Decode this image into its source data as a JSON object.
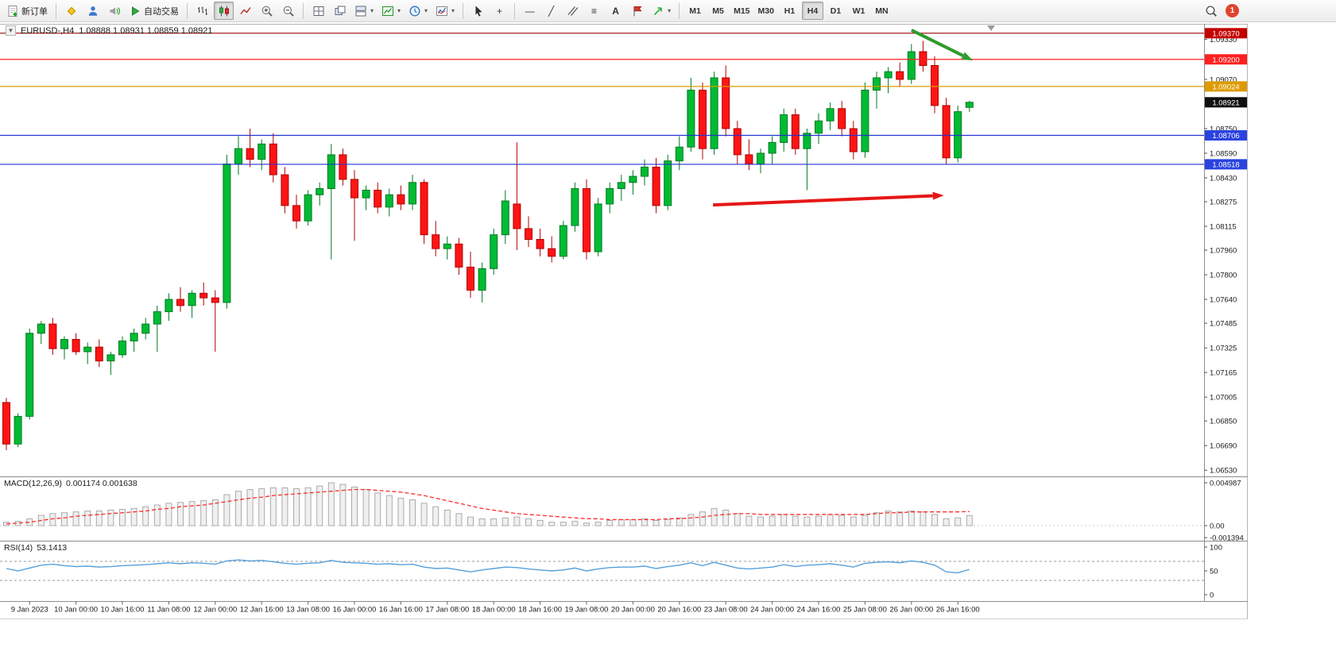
{
  "toolbar": {
    "new_order": "新订单",
    "autotrading": "自动交易",
    "timeframes": [
      "M1",
      "M5",
      "M15",
      "M30",
      "H1",
      "H4",
      "D1",
      "W1",
      "MN"
    ],
    "active_timeframe": "H4",
    "notification_count": "1"
  },
  "icons": {
    "window_menu_arrow": "▼",
    "dropdown_arrow": "▾",
    "crosshair": "+",
    "horizontal_line": "—",
    "trend_line": "╱",
    "fibonacci": "≡",
    "text_tool": "A"
  },
  "chart": {
    "symbol_period": "EURUSD-,H4",
    "ohlc": "1.08888 1.08931 1.08859 1.08921",
    "active_chart_type": "candlestick"
  },
  "indicators": {
    "macd_label": "MACD(12,26,9)",
    "macd_values": "0.001174 0.001638",
    "macd_axis": [
      "0.004987",
      "0.00",
      "-0.001394"
    ],
    "rsi_label": "RSI(14)",
    "rsi_value": "53.1413",
    "rsi_axis": [
      "100",
      "50",
      "0"
    ],
    "rsi_levels": [
      70,
      30
    ]
  },
  "chart_data": {
    "type": "candlestick",
    "symbol": "EURUSD-",
    "period": "H4",
    "title": "EURUSD-,H4",
    "current_bar": {
      "open": 1.08888,
      "high": 1.08931,
      "low": 1.08859,
      "close": 1.08921
    },
    "price_range": [
      1.065,
      1.094
    ],
    "price_axis_ticks": [
      "1.09330",
      "1.09070",
      "1.08750",
      "1.08590",
      "1.08430",
      "1.08275",
      "1.08115",
      "1.07960",
      "1.07800",
      "1.07640",
      "1.07485",
      "1.07325",
      "1.07165",
      "1.07005",
      "1.06850",
      "1.06690",
      "1.06530"
    ],
    "levels": [
      {
        "price": 1.0937,
        "label": "1.09370",
        "line_color": "#9b0000",
        "badge_color": "#c40000"
      },
      {
        "price": 1.092,
        "label": "1.09200",
        "line_color": "#ff2020",
        "badge_color": "#ff2020"
      },
      {
        "price": 1.09024,
        "label": "1.09024",
        "line_color": "#de9b00",
        "badge_color": "#de9b00"
      },
      {
        "price": 1.08706,
        "label": "1.08706",
        "line_color": "#2333cf",
        "badge_color": "#2a43e0"
      },
      {
        "price": 1.08518,
        "label": "1.08518",
        "line_color": "#2333cf",
        "badge_color": "#2a43e0"
      }
    ],
    "current_price_badge": {
      "price": 1.08921,
      "label": "1.08921",
      "badge_color": "#101010"
    },
    "colors": {
      "up": "#00bb33",
      "up_border": "#007a22",
      "down": "#ff1414",
      "down_border": "#b00000",
      "macd_hist_fill": "#f0f0f0",
      "macd_hist_border": "#ababab",
      "macd_signal": "#ff2a2a",
      "rsi_line": "#55a0dc",
      "rsi_level": "#9a9a9a",
      "axis_text": "#1a1a1a"
    },
    "candles": [
      [
        1.0697,
        1.07,
        1.0666,
        1.067
      ],
      [
        1.067,
        1.069,
        1.0668,
        1.0688
      ],
      [
        1.0688,
        1.0745,
        1.0686,
        1.0742
      ],
      [
        1.0742,
        1.075,
        1.0735,
        1.0748
      ],
      [
        1.0748,
        1.0752,
        1.0728,
        1.0732
      ],
      [
        1.0732,
        1.074,
        1.0725,
        1.0738
      ],
      [
        1.0738,
        1.0742,
        1.0728,
        1.073
      ],
      [
        1.073,
        1.0736,
        1.0722,
        1.0733
      ],
      [
        1.0733,
        1.0738,
        1.072,
        1.0724
      ],
      [
        1.0724,
        1.073,
        1.0715,
        1.0728
      ],
      [
        1.0728,
        1.074,
        1.0726,
        1.0737
      ],
      [
        1.0737,
        1.0745,
        1.073,
        1.0742
      ],
      [
        1.0742,
        1.0752,
        1.0738,
        1.0748
      ],
      [
        1.0748,
        1.076,
        1.073,
        1.0756
      ],
      [
        1.0756,
        1.0768,
        1.075,
        1.0764
      ],
      [
        1.0764,
        1.0772,
        1.0756,
        1.076
      ],
      [
        1.076,
        1.077,
        1.0752,
        1.0768
      ],
      [
        1.0768,
        1.0775,
        1.076,
        1.0765
      ],
      [
        1.0765,
        1.077,
        1.073,
        1.0762
      ],
      [
        1.0762,
        1.0858,
        1.0758,
        1.0852
      ],
      [
        1.0852,
        1.087,
        1.0845,
        1.0862
      ],
      [
        1.0862,
        1.0875,
        1.085,
        1.0855
      ],
      [
        1.0855,
        1.0868,
        1.0848,
        1.0865
      ],
      [
        1.0865,
        1.0872,
        1.084,
        1.0845
      ],
      [
        1.0845,
        1.085,
        1.082,
        1.0825
      ],
      [
        1.0825,
        1.0832,
        1.081,
        1.0815
      ],
      [
        1.0815,
        1.0835,
        1.0812,
        1.0832
      ],
      [
        1.0832,
        1.084,
        1.0825,
        1.0836
      ],
      [
        1.0836,
        1.0865,
        1.079,
        1.0858
      ],
      [
        1.0858,
        1.0862,
        1.0838,
        1.0842
      ],
      [
        1.0842,
        1.0848,
        1.0802,
        1.083
      ],
      [
        1.083,
        1.0838,
        1.0822,
        1.0835
      ],
      [
        1.0835,
        1.084,
        1.082,
        1.0824
      ],
      [
        1.0824,
        1.0836,
        1.0818,
        1.0832
      ],
      [
        1.0832,
        1.0838,
        1.0822,
        1.0826
      ],
      [
        1.0826,
        1.0845,
        1.0822,
        1.084
      ],
      [
        1.084,
        1.0842,
        1.08,
        1.0806
      ],
      [
        1.0806,
        1.0815,
        1.0792,
        1.0797
      ],
      [
        1.0797,
        1.0805,
        1.079,
        1.08
      ],
      [
        1.08,
        1.0804,
        1.078,
        1.0785
      ],
      [
        1.0785,
        1.0795,
        1.0765,
        1.077
      ],
      [
        1.077,
        1.0788,
        1.0762,
        1.0784
      ],
      [
        1.0784,
        1.081,
        1.078,
        1.0806
      ],
      [
        1.0806,
        1.0835,
        1.08,
        1.0828
      ],
      [
        1.0826,
        1.0866,
        1.0796,
        1.081
      ],
      [
        1.081,
        1.0818,
        1.0798,
        1.0803
      ],
      [
        1.0803,
        1.081,
        1.0792,
        1.0797
      ],
      [
        1.0797,
        1.0805,
        1.0788,
        1.0792
      ],
      [
        1.0792,
        1.0815,
        1.079,
        1.0812
      ],
      [
        1.0812,
        1.084,
        1.0808,
        1.0836
      ],
      [
        1.0836,
        1.0842,
        1.079,
        1.0795
      ],
      [
        1.0795,
        1.083,
        1.0792,
        1.0826
      ],
      [
        1.0826,
        1.084,
        1.082,
        1.0836
      ],
      [
        1.0836,
        1.0845,
        1.0828,
        1.084
      ],
      [
        1.084,
        1.0848,
        1.0832,
        1.0844
      ],
      [
        1.0844,
        1.0855,
        1.0838,
        1.085
      ],
      [
        1.085,
        1.0856,
        1.082,
        1.0825
      ],
      [
        1.0825,
        1.0858,
        1.0822,
        1.0854
      ],
      [
        1.0854,
        1.087,
        1.0848,
        1.0863
      ],
      [
        1.0863,
        1.0908,
        1.086,
        1.09
      ],
      [
        1.09,
        1.0905,
        1.0855,
        1.0862
      ],
      [
        1.0862,
        1.0912,
        1.0858,
        1.0908
      ],
      [
        1.0908,
        1.0916,
        1.087,
        1.0875
      ],
      [
        1.0875,
        1.088,
        1.0852,
        1.0858
      ],
      [
        1.0858,
        1.0868,
        1.0848,
        1.0852
      ],
      [
        1.0852,
        1.0862,
        1.0846,
        1.0859
      ],
      [
        1.0859,
        1.087,
        1.0852,
        1.0866
      ],
      [
        1.0866,
        1.0888,
        1.086,
        1.0884
      ],
      [
        1.0884,
        1.0888,
        1.0858,
        1.0862
      ],
      [
        1.0862,
        1.0875,
        1.0835,
        1.0872
      ],
      [
        1.0872,
        1.0885,
        1.0865,
        1.088
      ],
      [
        1.088,
        1.0892,
        1.0874,
        1.0888
      ],
      [
        1.0888,
        1.0893,
        1.087,
        1.0875
      ],
      [
        1.0875,
        1.088,
        1.0855,
        1.086
      ],
      [
        1.086,
        1.0905,
        1.0856,
        1.09
      ],
      [
        1.09,
        1.0912,
        1.0888,
        1.0908
      ],
      [
        1.0908,
        1.0915,
        1.0898,
        1.0912
      ],
      [
        1.0912,
        1.0918,
        1.0902,
        1.0907
      ],
      [
        1.0907,
        1.093,
        1.0904,
        1.0925
      ],
      [
        1.0925,
        1.0932,
        1.0912,
        1.0916
      ],
      [
        1.0916,
        1.0922,
        1.0885,
        1.089
      ],
      [
        1.089,
        1.0895,
        1.0852,
        1.0856
      ],
      [
        1.0856,
        1.089,
        1.0853,
        1.0886
      ],
      [
        1.08888,
        1.08931,
        1.08859,
        1.08921
      ]
    ],
    "time_labels": [
      "9 Jan 2023",
      "10 Jan 00:00",
      "10 Jan 16:00",
      "11 Jan 08:00",
      "12 Jan 00:00",
      "12 Jan 16:00",
      "13 Jan 08:00",
      "16 Jan 00:00",
      "16 Jan 16:00",
      "17 Jan 08:00",
      "18 Jan 00:00",
      "18 Jan 16:00",
      "19 Jan 08:00",
      "20 Jan 00:00",
      "20 Jan 16:00",
      "23 Jan 08:00",
      "24 Jan 00:00",
      "24 Jan 16:00",
      "25 Jan 08:00",
      "26 Jan 00:00",
      "26 Jan 16:00"
    ],
    "time_label_start_index": 2,
    "time_label_step": 4,
    "annotations": [
      {
        "type": "arrow",
        "name": "green-down-arrow",
        "color": "#2e9b2e",
        "from": {
          "index": 78.0,
          "price": 1.0939
        },
        "to": {
          "index": 83.3,
          "price": 1.09192
        }
      },
      {
        "type": "arrow",
        "name": "red-trend-arrow",
        "color": "#e61717",
        "from": {
          "index": 60.9,
          "price": 1.08254
        },
        "to": {
          "index": 80.8,
          "price": 1.08316
        }
      }
    ],
    "macd": {
      "histogram": [
        0.0004,
        0.0005,
        0.0008,
        0.0012,
        0.0014,
        0.0015,
        0.0016,
        0.0017,
        0.0017,
        0.0018,
        0.0019,
        0.002,
        0.0022,
        0.0024,
        0.0026,
        0.0027,
        0.0028,
        0.0029,
        0.003,
        0.0036,
        0.004,
        0.0042,
        0.0043,
        0.0044,
        0.0044,
        0.0043,
        0.0044,
        0.0046,
        0.004987,
        0.0048,
        0.0045,
        0.0042,
        0.0038,
        0.0035,
        0.0032,
        0.003,
        0.0026,
        0.0022,
        0.0018,
        0.0014,
        0.001,
        0.0008,
        0.0008,
        0.0009,
        0.001,
        0.0008,
        0.0006,
        0.0004,
        0.0004,
        0.0005,
        0.0003,
        0.0004,
        0.0006,
        0.0007,
        0.0007,
        0.0008,
        0.0006,
        0.0007,
        0.0009,
        0.0013,
        0.0016,
        0.002,
        0.0018,
        0.0014,
        0.0011,
        0.001,
        0.0011,
        0.0013,
        0.0011,
        0.001,
        0.0011,
        0.0013,
        0.0012,
        0.001,
        0.0012,
        0.0015,
        0.0017,
        0.0016,
        0.0017,
        0.0016,
        0.0013,
        0.0008,
        0.0009,
        0.001174
      ],
      "signal": [
        0.0002,
        0.0003,
        0.0004,
        0.0006,
        0.0008,
        0.0009,
        0.0011,
        0.0012,
        0.0013,
        0.0014,
        0.0015,
        0.0016,
        0.0017,
        0.0019,
        0.002,
        0.0022,
        0.0023,
        0.0024,
        0.0026,
        0.0028,
        0.003,
        0.0032,
        0.0033,
        0.0035,
        0.0036,
        0.0037,
        0.0038,
        0.0039,
        0.004,
        0.0041,
        0.0042,
        0.0042,
        0.0041,
        0.004,
        0.0039,
        0.0037,
        0.0035,
        0.0032,
        0.0029,
        0.0026,
        0.0023,
        0.002,
        0.0018,
        0.0016,
        0.0014,
        0.0013,
        0.0012,
        0.0011,
        0.001,
        0.0009,
        0.0008,
        0.0008,
        0.0007,
        0.0007,
        0.0007,
        0.0007,
        0.0007,
        0.0008,
        0.0008,
        0.0009,
        0.001,
        0.0012,
        0.0013,
        0.0014,
        0.0014,
        0.0013,
        0.0013,
        0.0013,
        0.0013,
        0.0013,
        0.0013,
        0.0013,
        0.0013,
        0.0013,
        0.0013,
        0.0014,
        0.0015,
        0.0015,
        0.0016,
        0.0016,
        0.0016,
        0.0016,
        0.0016,
        0.001638
      ]
    },
    "rsi": [
      55,
      50,
      56,
      62,
      64,
      61,
      59,
      60,
      58,
      59,
      61,
      62,
      63,
      65,
      67,
      65,
      67,
      66,
      64,
      71,
      73,
      71,
      72,
      69,
      66,
      64,
      66,
      67,
      72,
      68,
      67,
      66,
      64,
      65,
      63,
      64,
      58,
      55,
      56,
      52,
      48,
      52,
      55,
      58,
      57,
      54,
      52,
      50,
      52,
      56,
      50,
      54,
      57,
      58,
      58,
      60,
      55,
      59,
      62,
      67,
      61,
      68,
      62,
      56,
      54,
      56,
      58,
      63,
      59,
      62,
      63,
      65,
      62,
      58,
      66,
      68,
      69,
      67,
      71,
      68,
      62,
      48,
      46,
      53.14
    ]
  }
}
